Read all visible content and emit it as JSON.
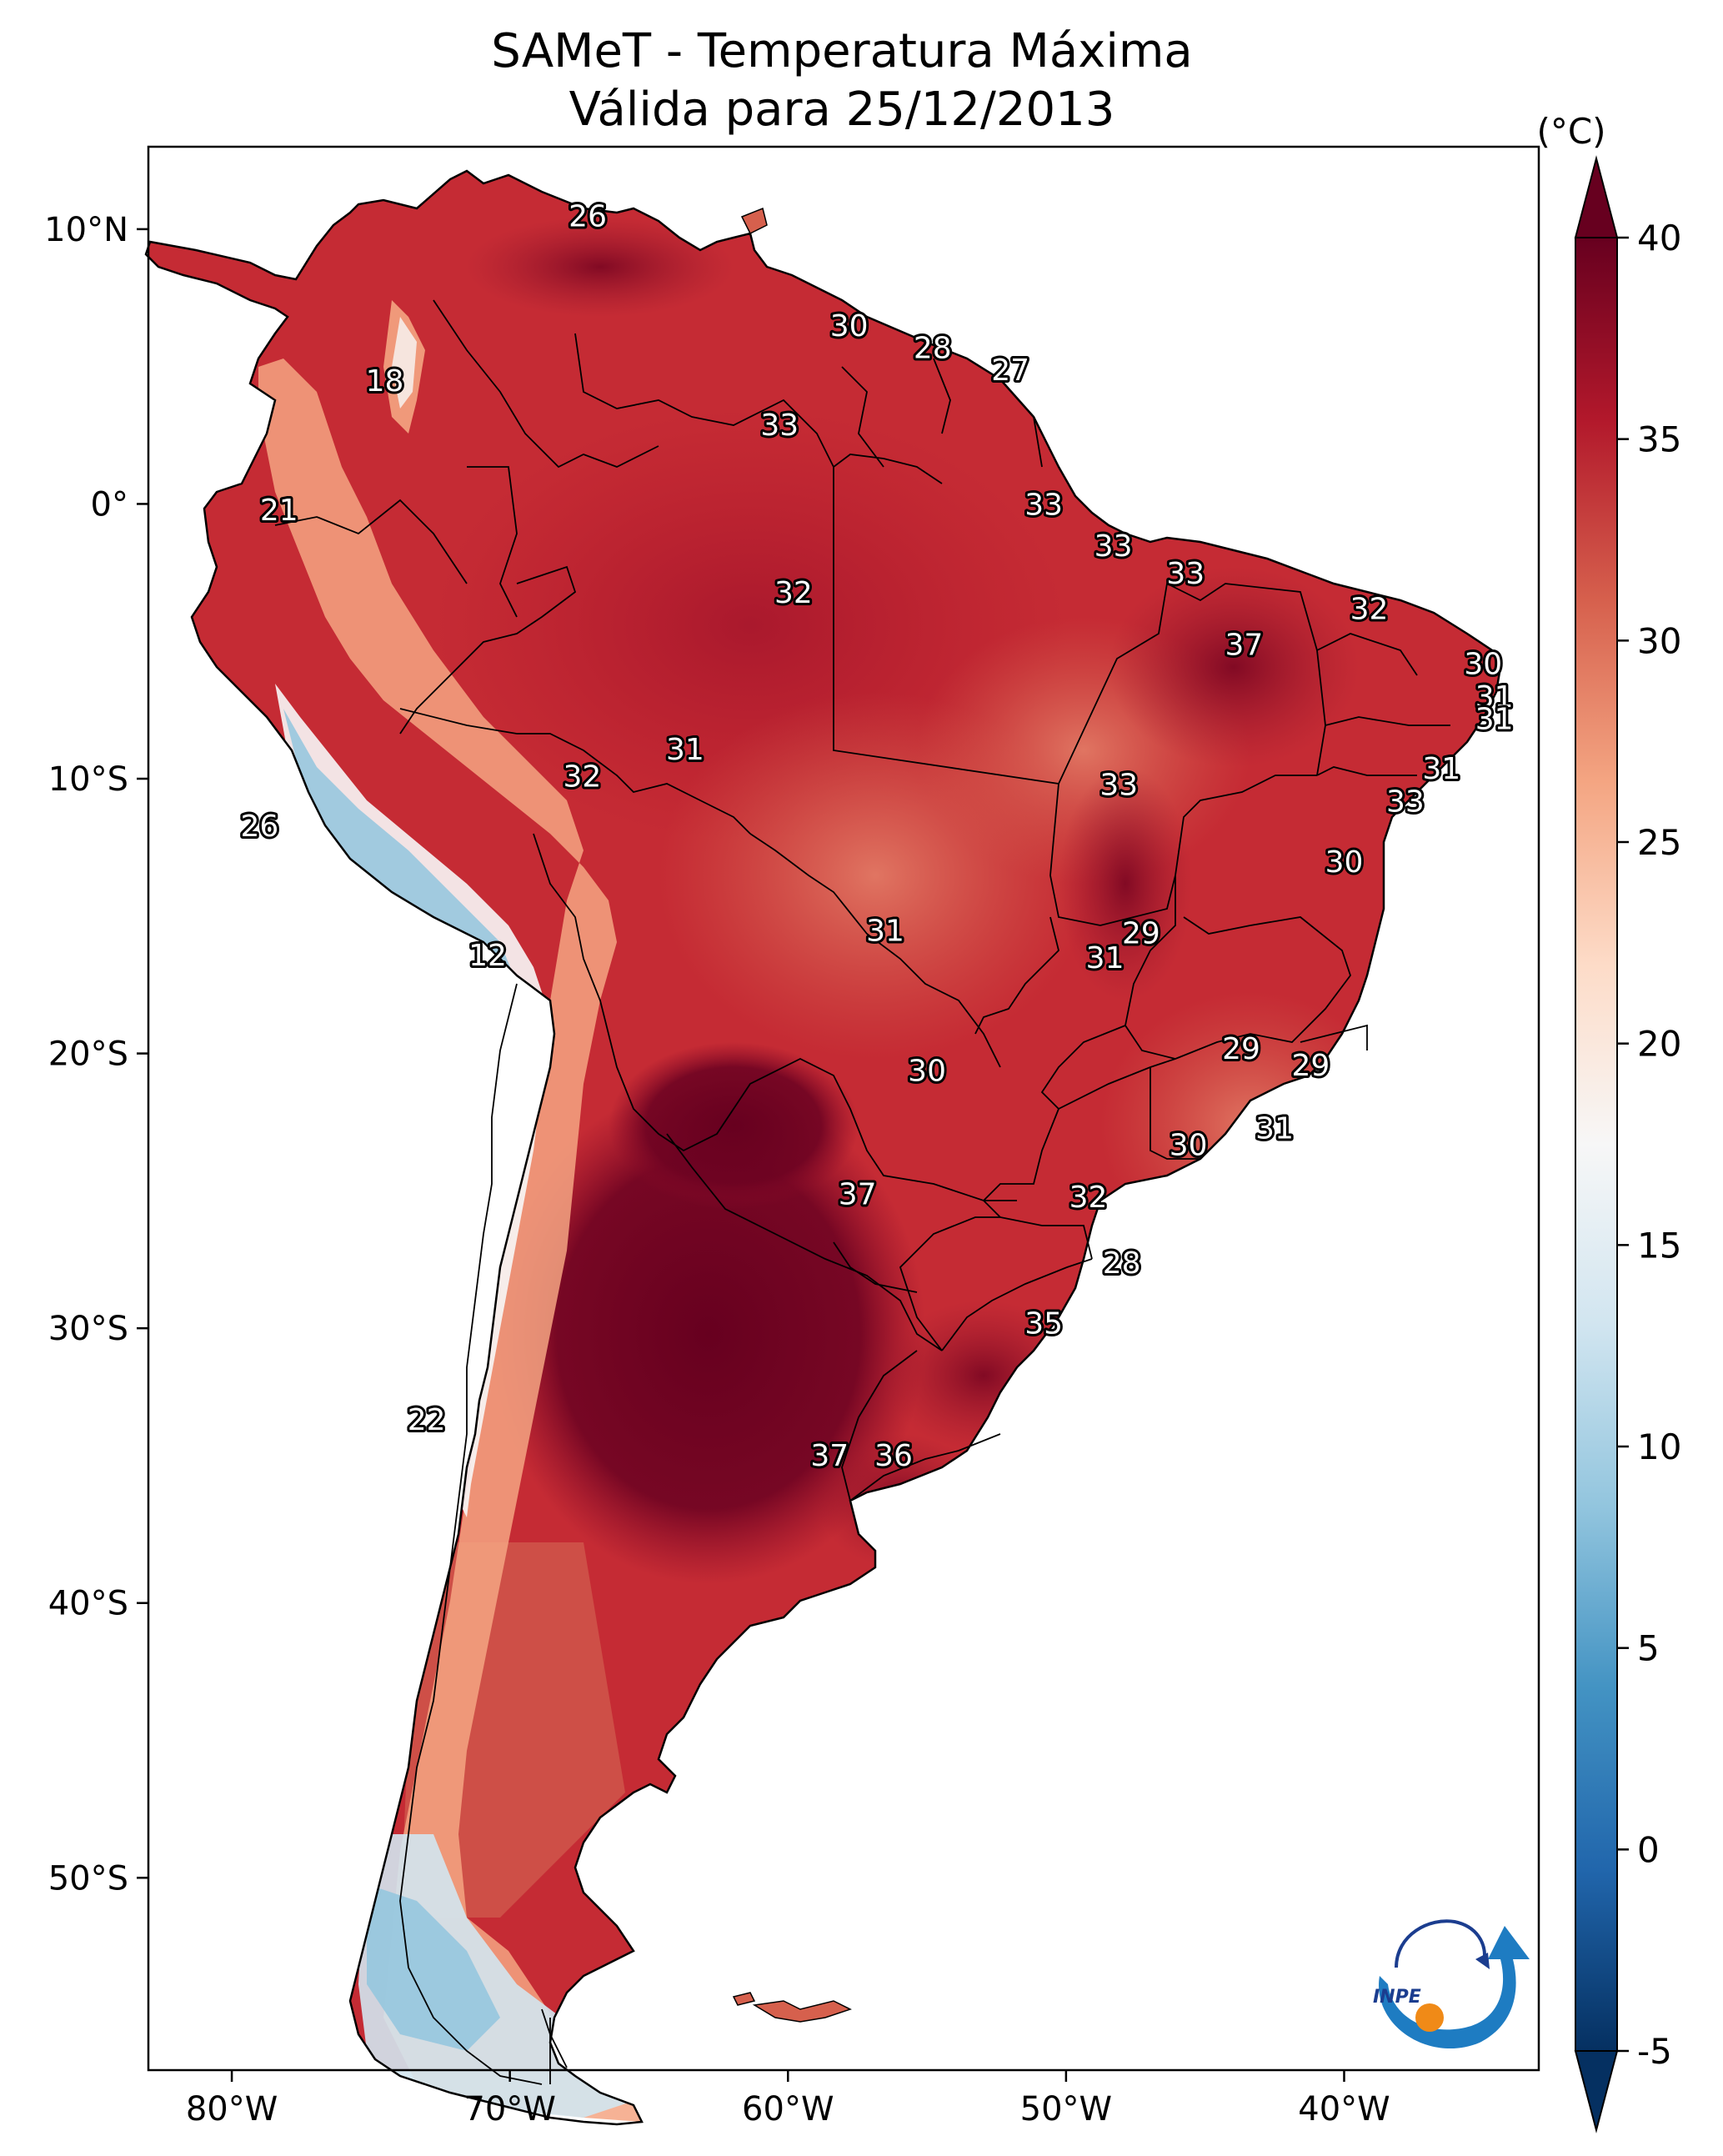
{
  "title": {
    "line1": "SAMeT - Temperatura Máxima",
    "line2": "Válida para 25/12/2013"
  },
  "chart_data": {
    "type": "heatmap",
    "map": "South America",
    "variable": "max temperature",
    "lon_range": [
      -83,
      -33
    ],
    "lat_range": [
      -57,
      13
    ],
    "x_ticks": [
      {
        "lon": -80,
        "label": "80°W"
      },
      {
        "lon": -70,
        "label": "70°W"
      },
      {
        "lon": -60,
        "label": "60°W"
      },
      {
        "lon": -50,
        "label": "50°W"
      },
      {
        "lon": -40,
        "label": "40°W"
      }
    ],
    "y_ticks": [
      {
        "lat": 10,
        "label": "10°N"
      },
      {
        "lat": 0,
        "label": "0°"
      },
      {
        "lat": -10,
        "label": "10°S"
      },
      {
        "lat": -20,
        "label": "20°S"
      },
      {
        "lat": -30,
        "label": "30°S"
      },
      {
        "lat": -40,
        "label": "40°S"
      },
      {
        "lat": -50,
        "label": "50°S"
      }
    ],
    "colorbar": {
      "unit": "(°C)",
      "range": [
        -5,
        40
      ],
      "extend": "both",
      "ticks": [
        "-5",
        "0",
        "5",
        "10",
        "15",
        "20",
        "25",
        "30",
        "35",
        "40"
      ],
      "colors": [
        "#053061",
        "#2166ac",
        "#4393c3",
        "#92c5de",
        "#d1e5f0",
        "#f7f7f7",
        "#fddbc7",
        "#f4a582",
        "#d6604d",
        "#b2182b",
        "#67001f"
      ]
    },
    "station_labels": [
      {
        "text": "26",
        "lon": -67.2,
        "lat": 10.5,
        "value": 26
      },
      {
        "text": "18",
        "lon": -74.5,
        "lat": 4.5,
        "value": 18
      },
      {
        "text": "30",
        "lon": -57.8,
        "lat": 6.5,
        "value": 30
      },
      {
        "text": "28",
        "lon": -54.8,
        "lat": 5.7,
        "value": 28
      },
      {
        "text": "27",
        "lon": -52.0,
        "lat": 4.9,
        "value": 27
      },
      {
        "text": "33",
        "lon": -60.3,
        "lat": 2.9,
        "value": 33
      },
      {
        "text": "21",
        "lon": -78.3,
        "lat": -0.2,
        "value": 21
      },
      {
        "text": "33",
        "lon": -50.8,
        "lat": 0.0,
        "value": 33
      },
      {
        "text": "33",
        "lon": -48.3,
        "lat": -1.5,
        "value": 33
      },
      {
        "text": "32",
        "lon": -59.8,
        "lat": -3.2,
        "value": 32
      },
      {
        "text": "33",
        "lon": -45.7,
        "lat": -2.5,
        "value": 33
      },
      {
        "text": "32",
        "lon": -39.1,
        "lat": -3.8,
        "value": 32
      },
      {
        "text": "37",
        "lon": -43.6,
        "lat": -5.1,
        "value": 37
      },
      {
        "text": "30",
        "lon": -35.0,
        "lat": -5.8,
        "value": 30
      },
      {
        "text": "31",
        "lon": -34.6,
        "lat": -7.0,
        "value": 31
      },
      {
        "text": "31",
        "lon": -34.6,
        "lat": -7.8,
        "value": 31
      },
      {
        "text": "31",
        "lon": -63.7,
        "lat": -8.9,
        "value": 31
      },
      {
        "text": "31",
        "lon": -36.5,
        "lat": -9.6,
        "value": 31
      },
      {
        "text": "32",
        "lon": -67.4,
        "lat": -9.9,
        "value": 32
      },
      {
        "text": "33",
        "lon": -48.1,
        "lat": -10.2,
        "value": 33
      },
      {
        "text": "33",
        "lon": -37.8,
        "lat": -10.8,
        "value": 33
      },
      {
        "text": "26",
        "lon": -79.0,
        "lat": -11.7,
        "value": 26
      },
      {
        "text": "30",
        "lon": -40.0,
        "lat": -13.0,
        "value": 30
      },
      {
        "text": "31",
        "lon": -56.5,
        "lat": -15.5,
        "value": 31
      },
      {
        "text": "29",
        "lon": -47.3,
        "lat": -15.6,
        "value": 29
      },
      {
        "text": "31",
        "lon": -48.6,
        "lat": -16.5,
        "value": 31
      },
      {
        "text": "12",
        "lon": -70.8,
        "lat": -16.4,
        "value": 12
      },
      {
        "text": "29",
        "lon": -43.7,
        "lat": -19.8,
        "value": 29
      },
      {
        "text": "29",
        "lon": -41.2,
        "lat": -20.4,
        "value": 29
      },
      {
        "text": "30",
        "lon": -55.0,
        "lat": -20.6,
        "value": 30
      },
      {
        "text": "31",
        "lon": -42.5,
        "lat": -22.7,
        "value": 31
      },
      {
        "text": "30",
        "lon": -45.6,
        "lat": -23.3,
        "value": 30
      },
      {
        "text": "37",
        "lon": -57.5,
        "lat": -25.1,
        "value": 37
      },
      {
        "text": "32",
        "lon": -49.2,
        "lat": -25.2,
        "value": 32
      },
      {
        "text": "28",
        "lon": -48.0,
        "lat": -27.6,
        "value": 28
      },
      {
        "text": "35",
        "lon": -50.8,
        "lat": -29.8,
        "value": 35
      },
      {
        "text": "22",
        "lon": -73.0,
        "lat": -33.3,
        "value": 22
      },
      {
        "text": "37",
        "lon": -58.5,
        "lat": -34.6,
        "value": 37
      },
      {
        "text": "36",
        "lon": -56.2,
        "lat": -34.6,
        "value": 36
      }
    ]
  },
  "logo": {
    "text": "INPE"
  }
}
